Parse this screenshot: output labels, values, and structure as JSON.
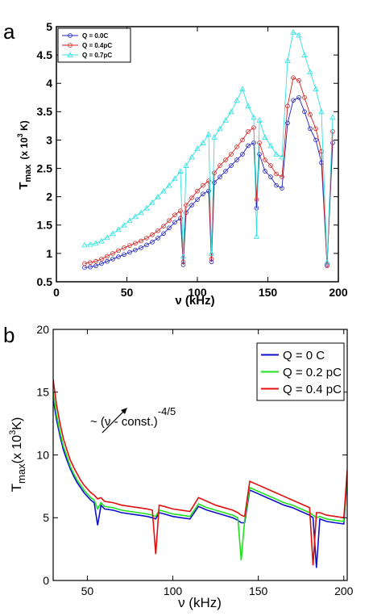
{
  "chart_data": [
    {
      "panel": "a",
      "type": "line",
      "title": "",
      "xlabel": "ν (kHz)",
      "ylabel": "T_max (x 10^3 K)",
      "ylabel_parts": {
        "main": "T",
        "sub": "max",
        "pre": "(x 10",
        "sup": "3",
        "post": " K)"
      },
      "xlim": [
        0,
        200
      ],
      "ylim": [
        0.5,
        5
      ],
      "xticks": [
        0,
        50,
        100,
        150,
        200
      ],
      "yticks": [
        0.5,
        1,
        1.5,
        2,
        2.5,
        3,
        3.5,
        4,
        4.5,
        5
      ],
      "yticklabels": [
        "0.5",
        "1",
        "1.5",
        "2",
        "2.5",
        "3",
        "3.5",
        "4",
        "4.5",
        "5"
      ],
      "legend_position": "top-left",
      "series": [
        {
          "name": "Q = 0.0C",
          "color": "#2020c0",
          "marker": "circle",
          "x": [
            20,
            24,
            28,
            32,
            36,
            40,
            44,
            48,
            52,
            56,
            60,
            64,
            68,
            72,
            76,
            80,
            84,
            88,
            90,
            92,
            96,
            100,
            104,
            108,
            110,
            112,
            116,
            120,
            124,
            128,
            132,
            136,
            140,
            142,
            144,
            148,
            152,
            156,
            160,
            164,
            168,
            172,
            176,
            180,
            184,
            188,
            192,
            196
          ],
          "values": [
            0.75,
            0.76,
            0.78,
            0.82,
            0.86,
            0.9,
            0.94,
            0.98,
            1.02,
            1.06,
            1.1,
            1.15,
            1.2,
            1.27,
            1.35,
            1.45,
            1.55,
            1.62,
            0.8,
            1.72,
            1.85,
            1.95,
            2.05,
            2.1,
            0.85,
            2.25,
            2.35,
            2.45,
            2.55,
            2.65,
            2.75,
            2.9,
            2.95,
            1.8,
            2.75,
            2.45,
            2.35,
            2.2,
            2.15,
            3.3,
            3.7,
            3.75,
            3.5,
            3.2,
            3.0,
            2.6,
            0.8,
            2.95
          ]
        },
        {
          "name": "Q = 0.4pC",
          "color": "#d02020",
          "marker": "circle",
          "x": [
            20,
            24,
            28,
            32,
            36,
            40,
            44,
            48,
            52,
            56,
            60,
            64,
            68,
            72,
            76,
            80,
            84,
            88,
            90,
            92,
            96,
            100,
            104,
            108,
            110,
            112,
            116,
            120,
            124,
            128,
            132,
            136,
            140,
            142,
            144,
            148,
            152,
            156,
            160,
            164,
            168,
            172,
            176,
            180,
            184,
            188,
            192,
            196
          ],
          "values": [
            0.82,
            0.84,
            0.86,
            0.9,
            0.95,
            1.0,
            1.05,
            1.1,
            1.14,
            1.18,
            1.22,
            1.27,
            1.33,
            1.4,
            1.48,
            1.58,
            1.68,
            1.75,
            0.85,
            1.85,
            1.98,
            2.1,
            2.2,
            2.28,
            0.9,
            2.42,
            2.55,
            2.65,
            2.75,
            2.88,
            3.0,
            3.15,
            3.22,
            1.95,
            2.95,
            2.65,
            2.55,
            2.4,
            2.35,
            3.6,
            4.1,
            4.05,
            3.75,
            3.45,
            3.2,
            2.8,
            0.78,
            3.15
          ]
        },
        {
          "name": "Q = 0.7pC",
          "color": "#30e0e0",
          "marker": "triangle",
          "x": [
            20,
            24,
            28,
            32,
            36,
            40,
            44,
            48,
            52,
            56,
            60,
            64,
            68,
            72,
            76,
            80,
            84,
            88,
            90,
            92,
            96,
            100,
            104,
            108,
            110,
            112,
            116,
            120,
            124,
            128,
            132,
            136,
            140,
            142,
            144,
            148,
            152,
            156,
            160,
            164,
            168,
            172,
            176,
            180,
            184,
            188,
            192,
            196
          ],
          "values": [
            1.15,
            1.16,
            1.18,
            1.22,
            1.28,
            1.35,
            1.42,
            1.5,
            1.58,
            1.65,
            1.72,
            1.8,
            1.9,
            2.0,
            2.1,
            2.2,
            2.32,
            2.45,
            0.95,
            2.55,
            2.7,
            2.85,
            2.95,
            3.1,
            1.0,
            3.05,
            3.2,
            3.35,
            3.5,
            3.7,
            3.9,
            3.6,
            3.4,
            1.3,
            3.35,
            3.05,
            2.9,
            2.75,
            2.7,
            4.4,
            4.9,
            4.85,
            4.5,
            4.2,
            3.9,
            3.5,
            0.85,
            3.4
          ]
        }
      ]
    },
    {
      "panel": "b",
      "type": "line",
      "title": "",
      "xlabel": "ν (kHz)",
      "ylabel": "T_max (x 10^3 K)",
      "ylabel_parts": {
        "main": "T",
        "sub": "max",
        "pre": "(x 10",
        "sup": "3",
        "post": "K)"
      },
      "xlim": [
        30,
        202
      ],
      "ylim": [
        0,
        20
      ],
      "xticks": [
        50,
        100,
        150,
        200
      ],
      "yticks": [
        0,
        5,
        10,
        15,
        20
      ],
      "yticklabels": [
        "0",
        "5",
        "10",
        "15",
        "20"
      ],
      "legend_position": "top-right",
      "annotation": {
        "text": "~ (ν - const.)",
        "sup": "-4/5"
      },
      "series": [
        {
          "name": "Q = 0 C",
          "color": "#1010c8",
          "x": [
            30,
            32,
            34,
            36,
            38,
            40,
            42,
            44,
            46,
            48,
            50,
            52,
            54,
            56,
            58,
            60,
            65,
            70,
            75,
            80,
            85,
            88,
            90,
            92,
            95,
            100,
            105,
            110,
            115,
            120,
            125,
            130,
            135,
            138,
            140,
            142,
            145,
            150,
            155,
            160,
            165,
            170,
            175,
            180,
            182,
            184,
            186,
            190,
            195,
            200,
            202
          ],
          "values": [
            14.5,
            12.8,
            11.5,
            10.4,
            9.6,
            8.9,
            8.3,
            7.8,
            7.4,
            7.0,
            6.7,
            6.4,
            6.2,
            4.4,
            6.0,
            5.7,
            5.6,
            5.4,
            5.3,
            5.2,
            5.1,
            5.0,
            4.9,
            5.4,
            5.3,
            5.1,
            5.0,
            4.9,
            5.9,
            5.6,
            5.4,
            5.2,
            5.0,
            4.8,
            4.6,
            4.6,
            7.2,
            6.9,
            6.6,
            6.3,
            6.0,
            5.8,
            5.5,
            5.2,
            5.0,
            1.0,
            4.9,
            4.7,
            4.6,
            4.5,
            8.2
          ]
        },
        {
          "name": "Q = 0.2 pC",
          "color": "#20e020",
          "x": [
            30,
            32,
            34,
            36,
            38,
            40,
            42,
            44,
            46,
            48,
            50,
            52,
            54,
            56,
            58,
            60,
            65,
            70,
            75,
            80,
            85,
            88,
            90,
            92,
            95,
            100,
            105,
            110,
            115,
            120,
            125,
            130,
            135,
            138,
            140,
            142,
            145,
            150,
            155,
            160,
            165,
            170,
            175,
            180,
            182,
            184,
            186,
            190,
            195,
            200,
            202
          ],
          "values": [
            15.0,
            13.2,
            11.8,
            10.7,
            9.9,
            9.1,
            8.5,
            8.0,
            7.6,
            7.2,
            6.9,
            6.6,
            6.4,
            5.7,
            6.2,
            5.9,
            5.8,
            5.6,
            5.5,
            5.4,
            5.3,
            5.2,
            5.1,
            5.6,
            5.5,
            5.3,
            5.2,
            5.1,
            6.1,
            5.8,
            5.6,
            5.4,
            5.2,
            5.0,
            1.6,
            4.8,
            7.4,
            7.1,
            6.8,
            6.5,
            6.2,
            6.0,
            5.7,
            5.4,
            5.2,
            5.0,
            5.1,
            4.9,
            4.8,
            4.7,
            8.4
          ]
        },
        {
          "name": "Q = 0.4 pC",
          "color": "#e01010",
          "x": [
            30,
            32,
            34,
            36,
            38,
            40,
            42,
            44,
            46,
            48,
            50,
            52,
            54,
            56,
            58,
            60,
            65,
            70,
            75,
            80,
            85,
            88,
            90,
            92,
            95,
            100,
            105,
            110,
            115,
            120,
            125,
            130,
            135,
            138,
            140,
            142,
            145,
            150,
            155,
            160,
            165,
            170,
            175,
            180,
            182,
            184,
            186,
            190,
            195,
            200,
            202
          ],
          "values": [
            16.0,
            14.0,
            12.5,
            11.3,
            10.4,
            9.6,
            9.0,
            8.5,
            8.0,
            7.6,
            7.3,
            7.0,
            6.8,
            6.5,
            6.6,
            6.3,
            6.2,
            6.0,
            5.9,
            5.8,
            5.7,
            5.6,
            2.1,
            6.0,
            5.9,
            5.7,
            5.6,
            5.5,
            6.6,
            6.3,
            6.0,
            5.8,
            5.6,
            5.4,
            5.2,
            5.1,
            7.9,
            7.6,
            7.3,
            7.0,
            6.7,
            6.4,
            6.1,
            5.8,
            1.2,
            5.4,
            5.4,
            5.2,
            5.1,
            5.0,
            8.8
          ]
        }
      ]
    }
  ],
  "panel_labels": [
    "a",
    "b"
  ]
}
